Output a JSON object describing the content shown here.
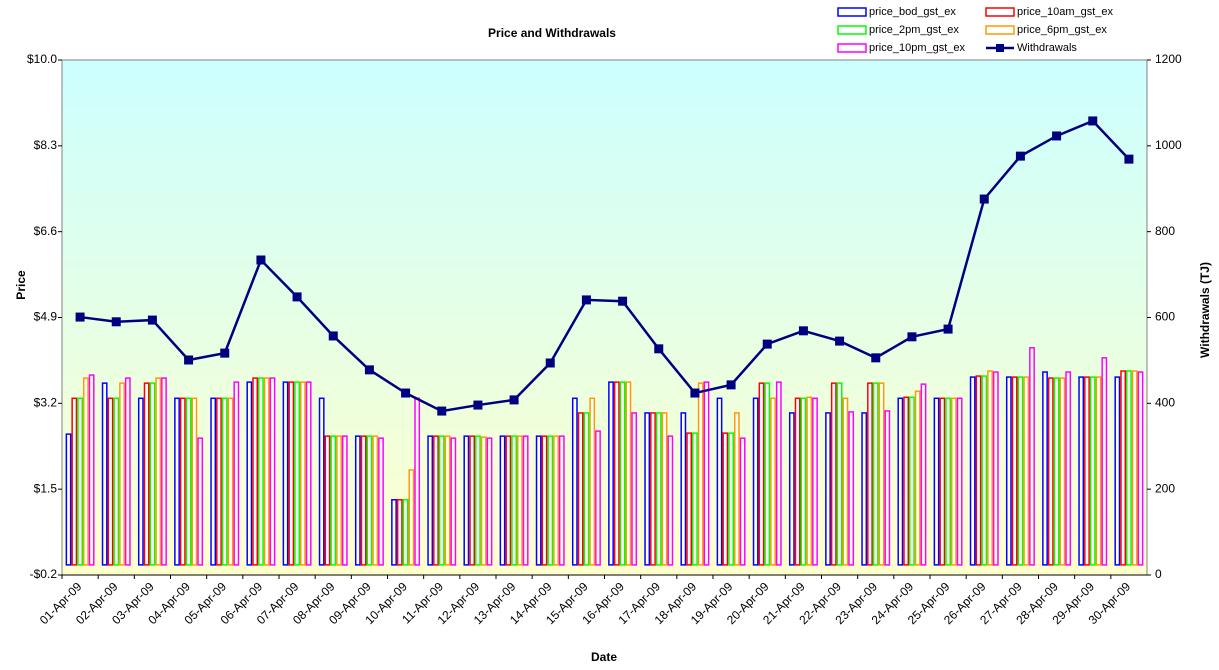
{
  "chart_data": {
    "type": "bar",
    "title": "Price and Withdrawals",
    "x_label": "Date",
    "y_label": "Price",
    "y2_label": "Withdrawals (TJ)",
    "categories": [
      "01-Apr-09",
      "02-Apr-09",
      "03-Apr-09",
      "04-Apr-09",
      "05-Apr-09",
      "06-Apr-09",
      "07-Apr-09",
      "08-Apr-09",
      "09-Apr-09",
      "10-Apr-09",
      "11-Apr-09",
      "12-Apr-09",
      "13-Apr-09",
      "14-Apr-09",
      "15-Apr-09",
      "16-Apr-09",
      "17-Apr-09",
      "18-Apr-09",
      "19-Apr-09",
      "20-Apr-09",
      "21-Apr-09",
      "22-Apr-09",
      "23-Apr-09",
      "24-Apr-09",
      "25-Apr-09",
      "26-Apr-09",
      "27-Apr-09",
      "28-Apr-09",
      "29-Apr-09",
      "30-Apr-09"
    ],
    "series": [
      {
        "name": "price_bod_gst_ex",
        "color": "#0000ff",
        "values": [
          2.59,
          3.6,
          3.3,
          3.3,
          3.3,
          3.62,
          3.62,
          3.3,
          2.55,
          1.29,
          2.55,
          2.55,
          2.55,
          2.55,
          3.3,
          3.62,
          3.01,
          3.01,
          3.3,
          3.3,
          3.01,
          3.01,
          3.01,
          3.3,
          3.3,
          3.72,
          3.72,
          3.82,
          3.72,
          3.72
        ]
      },
      {
        "name": "price_10am_gst_ex",
        "color": "#ff0000",
        "values": [
          3.3,
          3.3,
          3.6,
          3.3,
          3.3,
          3.7,
          3.62,
          2.55,
          2.55,
          1.29,
          2.55,
          2.55,
          2.55,
          2.55,
          3.01,
          3.62,
          3.01,
          2.61,
          2.61,
          3.6,
          3.3,
          3.6,
          3.6,
          3.32,
          3.3,
          3.74,
          3.72,
          3.7,
          3.72,
          3.84
        ]
      },
      {
        "name": "price_2pm_gst_ex",
        "color": "#00ff00",
        "values": [
          3.3,
          3.3,
          3.6,
          3.3,
          3.3,
          3.7,
          3.62,
          2.55,
          2.55,
          1.29,
          2.55,
          2.55,
          2.55,
          2.55,
          3.01,
          3.62,
          3.01,
          2.61,
          2.61,
          3.6,
          3.3,
          3.6,
          3.6,
          3.32,
          3.3,
          3.74,
          3.72,
          3.7,
          3.72,
          3.84
        ]
      },
      {
        "name": "price_6pm_gst_ex",
        "color": "#ff9900",
        "values": [
          3.7,
          3.6,
          3.7,
          3.3,
          3.3,
          3.7,
          3.62,
          2.55,
          2.55,
          1.88,
          2.55,
          2.53,
          2.55,
          2.55,
          3.3,
          3.62,
          3.01,
          3.6,
          3.01,
          3.3,
          3.32,
          3.3,
          3.6,
          3.44,
          3.3,
          3.84,
          3.72,
          3.7,
          3.72,
          3.84
        ]
      },
      {
        "name": "price_10pm_gst_ex",
        "color": "#ff00ff",
        "values": [
          3.76,
          3.7,
          3.7,
          2.51,
          3.62,
          3.7,
          3.62,
          2.55,
          2.51,
          3.3,
          2.51,
          2.51,
          2.55,
          2.55,
          2.65,
          3.01,
          2.55,
          3.62,
          2.51,
          3.62,
          3.3,
          3.03,
          3.05,
          3.58,
          3.3,
          3.82,
          4.3,
          3.82,
          4.1,
          3.82
        ]
      },
      {
        "name": "Withdrawals",
        "color": "#000080",
        "type": "line",
        "axis": "y2",
        "values": [
          601,
          590,
          594,
          501,
          517,
          734,
          648,
          557,
          478,
          424,
          382,
          396,
          408,
          494,
          641,
          638,
          527,
          424,
          443,
          538,
          569,
          545,
          506,
          555,
          573,
          876,
          976,
          1023,
          1058,
          969
        ]
      }
    ],
    "ylim": [
      -0.2,
      10.0
    ],
    "yticks": [
      {
        "value": -0.2,
        "label": "-$0.2"
      },
      {
        "value": 1.5,
        "label": "$1.5"
      },
      {
        "value": 3.2,
        "label": "$3.2"
      },
      {
        "value": 4.9,
        "label": "$4.9"
      },
      {
        "value": 6.6,
        "label": "$6.6"
      },
      {
        "value": 8.3,
        "label": "$8.3"
      },
      {
        "value": 10.0,
        "label": "$10.0"
      }
    ],
    "y2lim": [
      0,
      1200
    ],
    "y2ticks": [
      0,
      200,
      400,
      600,
      800,
      1000,
      1200
    ],
    "legend": "top-right"
  }
}
